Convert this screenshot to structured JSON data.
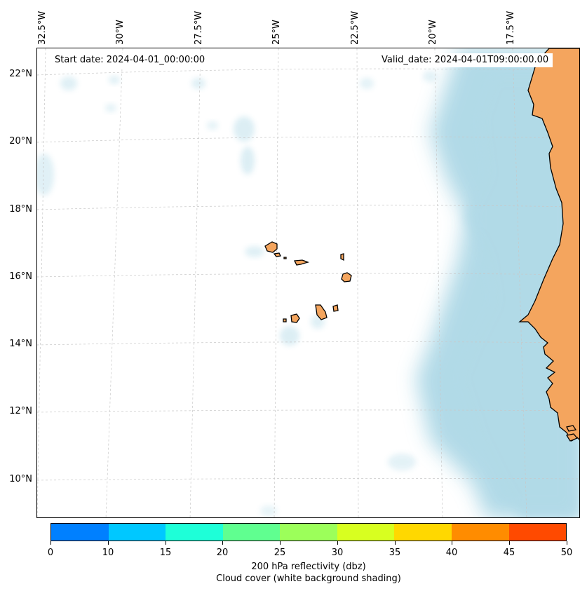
{
  "header": {
    "start_date": "Start date: 2024-04-01_00:00:00",
    "valid_date": "Valid_date: 2024-04-01T09:00:00.00"
  },
  "map": {
    "longitude_labels": [
      "32.5°W",
      "30°W",
      "27.5°W",
      "25°W",
      "22.5°W",
      "20°W",
      "17.5°W"
    ],
    "latitude_labels": [
      "22°N",
      "20°N",
      "18°N",
      "16°N",
      "14°N",
      "12°N",
      "10°N"
    ],
    "colors": {
      "land": "#f4a55e",
      "cloud": "#add8e6",
      "coastline": "#000000",
      "gridline": "#c8c8c8"
    }
  },
  "colorbar": {
    "tick_labels": [
      "0",
      "10",
      "15",
      "20",
      "25",
      "30",
      "35",
      "40",
      "45",
      "50"
    ],
    "colors": [
      "#0080ff",
      "#00c8ff",
      "#1effd8",
      "#60ff90",
      "#9cff5a",
      "#d8ff20",
      "#ffd800",
      "#ff8c00",
      "#ff4a00"
    ],
    "label_line1": "200 hPa reflectivity (dbz)",
    "label_line2": "Cloud cover (white background shading)"
  }
}
